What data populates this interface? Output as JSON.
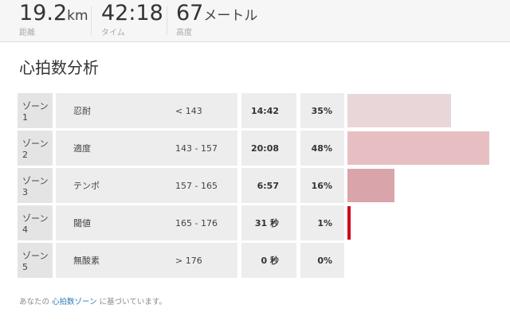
{
  "stats": [
    {
      "value": "19.2",
      "unit": "km",
      "label": "距離"
    },
    {
      "value": "42:18",
      "unit": "",
      "label": "タイム"
    },
    {
      "value": "67",
      "unit": "メートル",
      "label": "高度"
    }
  ],
  "section_title": "心拍数分析",
  "zones": [
    {
      "zone": "ゾーン 1",
      "name": "忍耐",
      "range": "< 143",
      "time": "14:42",
      "percent": "35%",
      "share": 0.35,
      "color": "#e8d6d8"
    },
    {
      "zone": "ゾーン 2",
      "name": "適度",
      "range": "143 - 157",
      "time": "20:08",
      "percent": "48%",
      "share": 0.48,
      "color": "#e7bfc2"
    },
    {
      "zone": "ゾーン 3",
      "name": "テンポ",
      "range": "157 - 165",
      "time": "6:57",
      "percent": "16%",
      "share": 0.16,
      "color": "#daa5aa"
    },
    {
      "zone": "ゾーン 4",
      "name": "閾値",
      "range": "165 - 176",
      "time": "31 秒",
      "percent": "1%",
      "share": 0.01,
      "color": "#d0021b"
    },
    {
      "zone": "ゾーン 5",
      "name": "無酸素",
      "range": "> 176",
      "time": "0 秒",
      "percent": "0%",
      "share": 0.0,
      "color": "#e8d6d8"
    }
  ],
  "footnote": {
    "before": "あなたの",
    "link": "心拍数ゾーン",
    "after": "に基づいています。"
  }
}
